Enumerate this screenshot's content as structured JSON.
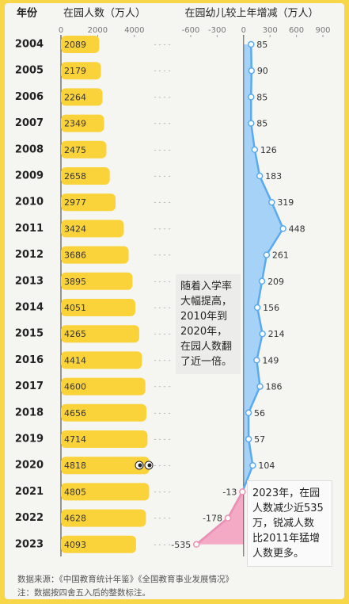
{
  "chart_data": [
    {
      "type": "bar",
      "y_axis_label": "年份",
      "title": "在园人数（万人）",
      "categories": [
        "2004",
        "2005",
        "2006",
        "2007",
        "2008",
        "2009",
        "2010",
        "2011",
        "2012",
        "2013",
        "2014",
        "2015",
        "2016",
        "2017",
        "2018",
        "2019",
        "2020",
        "2021",
        "2022",
        "2023"
      ],
      "values": [
        2089,
        2179,
        2264,
        2349,
        2475,
        2658,
        2977,
        3424,
        3686,
        3895,
        4051,
        4265,
        4414,
        4600,
        4656,
        4714,
        4818,
        4805,
        4628,
        4093
      ],
      "color": "#fad33a",
      "xlim": [
        0,
        5000
      ],
      "xticks": [
        0,
        2000,
        4000
      ]
    },
    {
      "type": "line",
      "title": "在园幼儿较上年增减（万人）",
      "values": [
        85,
        90,
        85,
        85,
        126,
        183,
        319,
        448,
        261,
        209,
        156,
        214,
        149,
        186,
        56,
        57,
        104,
        -13,
        -178,
        -535
      ],
      "color": "#5aaaf0",
      "negative_color": "#f08fb2",
      "xlim": [
        -600,
        900
      ],
      "xticks": [
        -600,
        -300,
        0,
        300,
        600,
        900
      ],
      "annotations": [
        [
          "随着入学率",
          "大幅提高，",
          "2010年到",
          "2020年，",
          "在园人数翻",
          "了近一倍。"
        ],
        [
          "2023年，在园",
          "人数减少近535",
          "万，锐减人数",
          "比2011年猛增",
          "人数更多。"
        ]
      ]
    }
  ],
  "footer": [
    "数据来源：《中国教育统计年鉴》《全国教育事业发展情况》",
    "注：数据按四舍五入后的整数标注。"
  ]
}
